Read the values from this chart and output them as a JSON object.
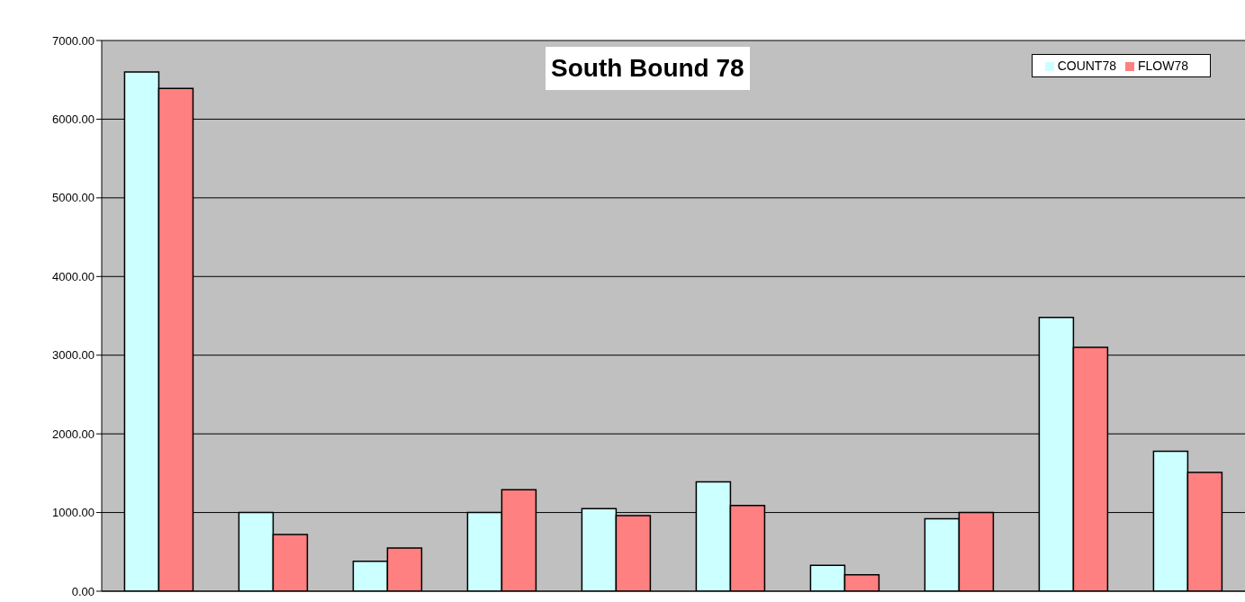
{
  "chart_data": {
    "type": "bar",
    "title": "South Bound 78",
    "categories": [
      null,
      null,
      null,
      null,
      null,
      null,
      null,
      null,
      null,
      null
    ],
    "series": [
      {
        "name": "COUNT78",
        "color": "#ccffff",
        "values": [
          6600,
          1000,
          380,
          1000,
          1050,
          1390,
          330,
          920,
          3480,
          1780
        ]
      },
      {
        "name": "FLOW78",
        "color": "#ff8080",
        "values": [
          6390,
          720,
          550,
          1290,
          960,
          1090,
          210,
          1000,
          3100,
          1510
        ]
      }
    ],
    "ylim": [
      0,
      7000
    ],
    "yticks": [
      {
        "value": 0,
        "label": "0.00"
      },
      {
        "value": 1000,
        "label": "1000.00"
      },
      {
        "value": 2000,
        "label": "2000.00"
      },
      {
        "value": 3000,
        "label": "3000.00"
      },
      {
        "value": 4000,
        "label": "4000.00"
      },
      {
        "value": 5000,
        "label": "5000.00"
      },
      {
        "value": 6000,
        "label": "6000.00"
      },
      {
        "value": 7000,
        "label": "7000.00"
      }
    ],
    "grid": "y",
    "legend": "top right",
    "tick_labels": "y"
  }
}
